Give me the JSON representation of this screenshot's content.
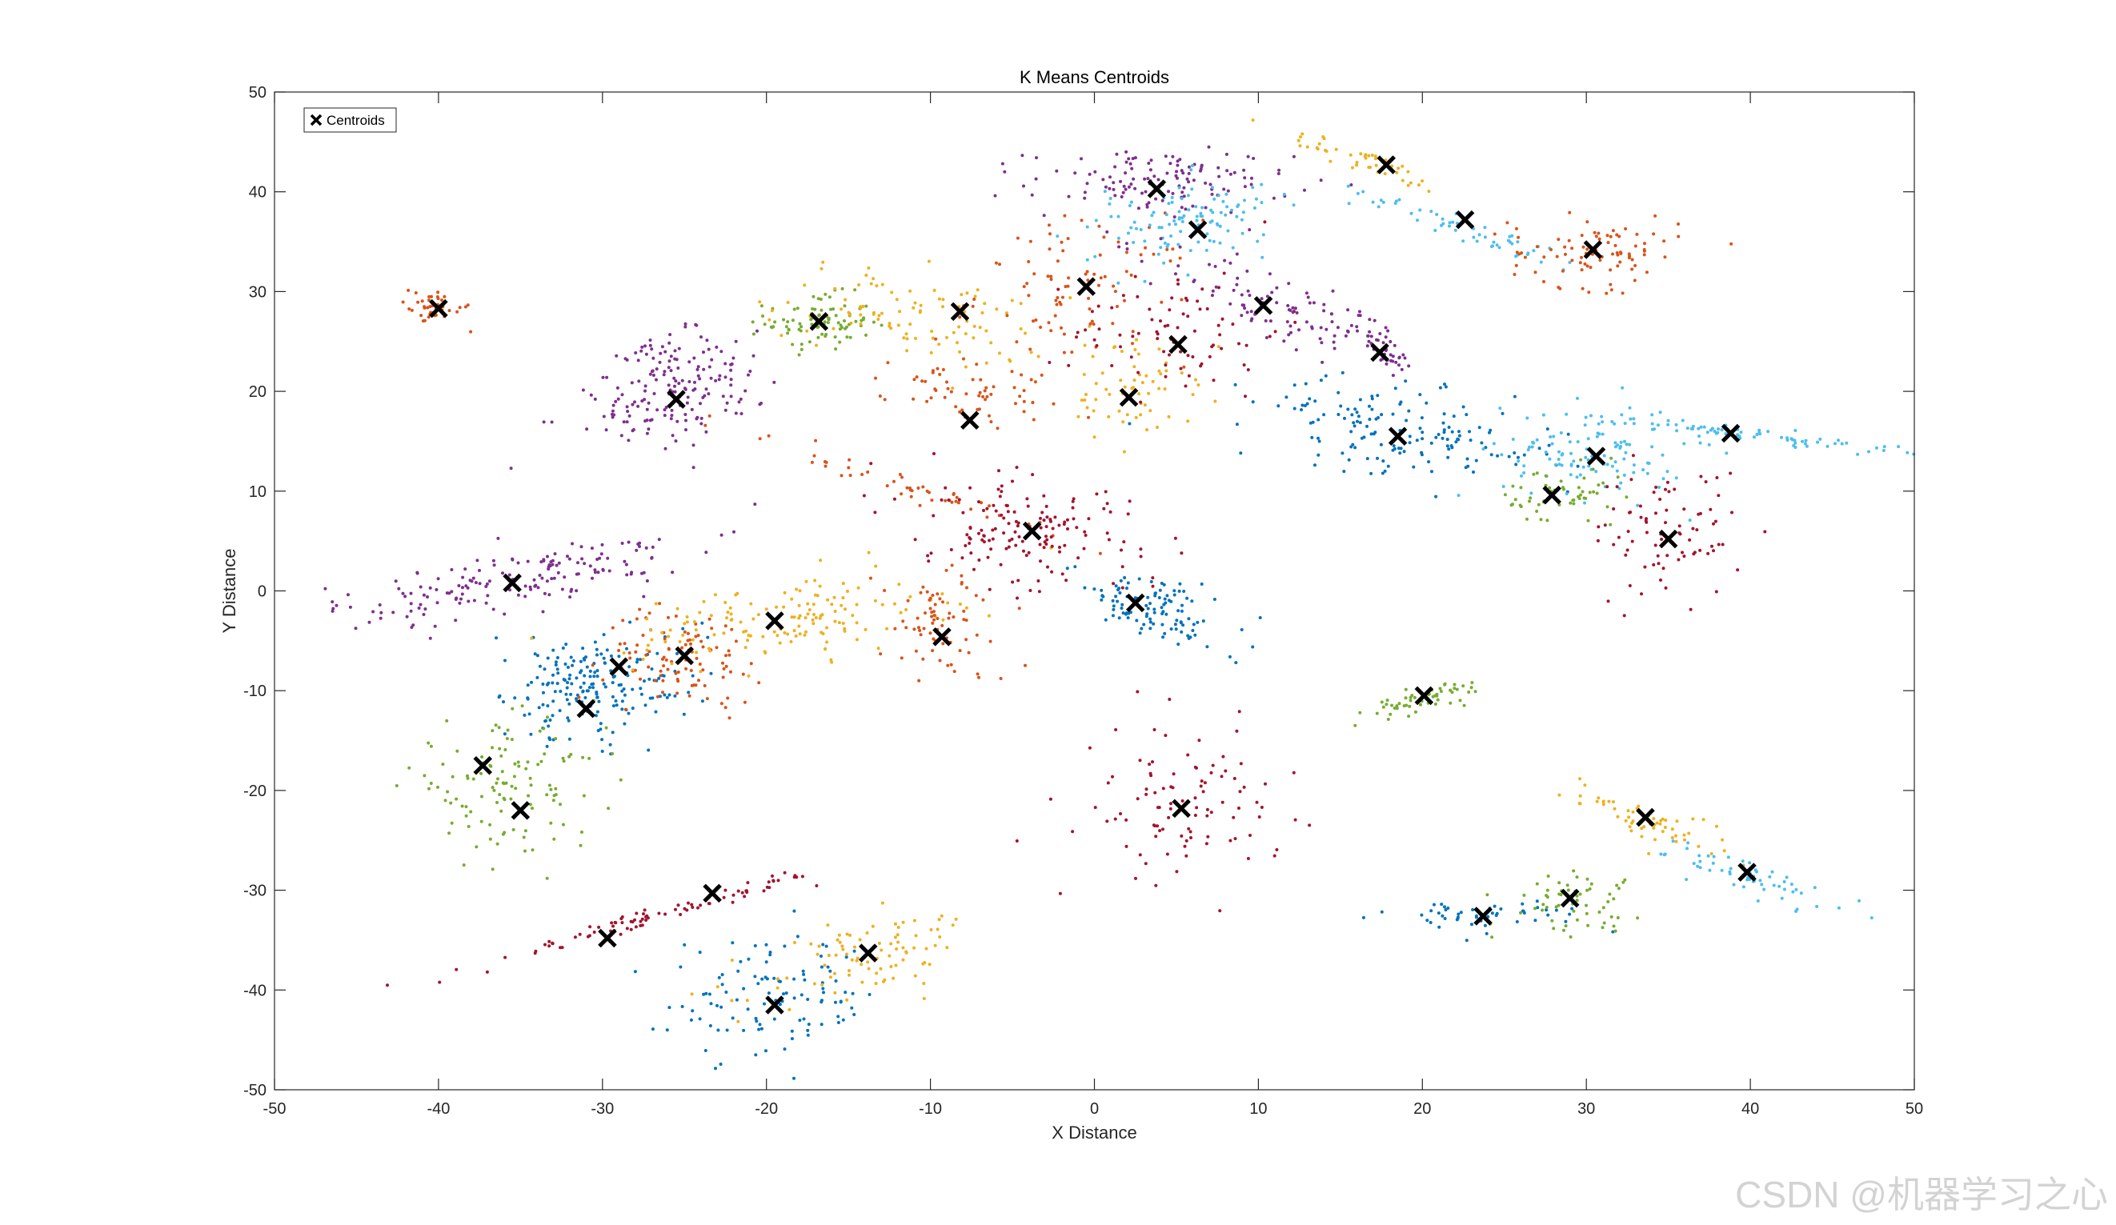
{
  "watermark": "CSDN @机器学习之心",
  "chart_data": {
    "type": "scatter",
    "title": "K Means Centroids",
    "xlabel": "X Distance",
    "ylabel": "Y Distance",
    "xlim": [
      -50,
      50
    ],
    "ylim": [
      -50,
      50
    ],
    "xticks": [
      -50,
      -40,
      -30,
      -20,
      -10,
      0,
      10,
      20,
      30,
      40,
      50
    ],
    "yticks": [
      -50,
      -40,
      -30,
      -20,
      -10,
      0,
      10,
      20,
      30,
      40,
      50
    ],
    "grid": false,
    "legend": {
      "position": "top-left",
      "entries": [
        "Centroids"
      ]
    },
    "colors": {
      "blue": "#0072BD",
      "orange": "#D95319",
      "yellow": "#EDB120",
      "purple": "#7E2F8E",
      "green": "#77AC30",
      "cyan": "#4DBEEE",
      "maroon": "#A2142F",
      "centroid": "#000000"
    },
    "centroids": [
      [
        -40,
        28.3
      ],
      [
        -35.5,
        0.8
      ],
      [
        -37.3,
        -17.5
      ],
      [
        -35,
        -22
      ],
      [
        -31,
        -11.8
      ],
      [
        -29,
        -7.6
      ],
      [
        -25.5,
        19.2
      ],
      [
        -25,
        -6.5
      ],
      [
        -23.3,
        -30.3
      ],
      [
        -29.7,
        -34.8
      ],
      [
        -19.5,
        -3
      ],
      [
        -19.5,
        -41.5
      ],
      [
        -16.8,
        27
      ],
      [
        -13.8,
        -36.3
      ],
      [
        -9.3,
        -4.6
      ],
      [
        -8.2,
        28
      ],
      [
        -7.6,
        17.1
      ],
      [
        -3.8,
        6
      ],
      [
        -0.5,
        30.5
      ],
      [
        2.5,
        -1.2
      ],
      [
        2.1,
        19.4
      ],
      [
        3.8,
        40.3
      ],
      [
        5.1,
        24.7
      ],
      [
        5.3,
        -21.8
      ],
      [
        6.3,
        36.2
      ],
      [
        10.3,
        28.6
      ],
      [
        17.4,
        23.9
      ],
      [
        17.8,
        42.7
      ],
      [
        18.5,
        15.5
      ],
      [
        20.1,
        -10.5
      ],
      [
        22.6,
        37.2
      ],
      [
        23.7,
        -32.6
      ],
      [
        27.9,
        9.6
      ],
      [
        29.0,
        -30.8
      ],
      [
        30.4,
        34.2
      ],
      [
        30.6,
        13.5
      ],
      [
        33.6,
        -22.7
      ],
      [
        35.0,
        5.2
      ],
      [
        38.8,
        15.8
      ],
      [
        39.8,
        -28.2
      ]
    ],
    "clusters": [
      {
        "color": "orange",
        "center": [
          -40.3,
          28.5
        ],
        "spread": [
          1.2,
          0.9
        ],
        "angle": -37,
        "n": 40
      },
      {
        "color": "purple",
        "center": [
          -25.5,
          20.5
        ],
        "spread": [
          3.2,
          2.8
        ],
        "angle": 45,
        "n": 180
      },
      {
        "color": "green",
        "center": [
          -16.8,
          26.9
        ],
        "spread": [
          1.6,
          1.4
        ],
        "angle": 0,
        "n": 90
      },
      {
        "color": "yellow",
        "center": [
          -11,
          27.5
        ],
        "spread": [
          4.5,
          2.2
        ],
        "angle": -15,
        "n": 100
      },
      {
        "color": "orange",
        "center": [
          -0.5,
          30
        ],
        "spread": [
          3.3,
          3.6
        ],
        "angle": 0,
        "n": 90
      },
      {
        "color": "orange",
        "center": [
          -7.6,
          20
        ],
        "spread": [
          1.4,
          2.8
        ],
        "angle": 70,
        "n": 60
      },
      {
        "color": "yellow",
        "center": [
          2.3,
          20.5
        ],
        "spread": [
          2.2,
          2.5
        ],
        "angle": 40,
        "n": 60
      },
      {
        "color": "purple",
        "center": [
          4,
          41
        ],
        "spread": [
          4.0,
          1.6
        ],
        "angle": 0,
        "n": 130
      },
      {
        "color": "cyan",
        "center": [
          5.5,
          37
        ],
        "spread": [
          3.0,
          2.0
        ],
        "angle": 25,
        "n": 110
      },
      {
        "color": "maroon",
        "center": [
          5.1,
          26
        ],
        "spread": [
          3.2,
          3.2
        ],
        "angle": 0,
        "n": 80
      },
      {
        "color": "purple",
        "center": [
          10.8,
          28.5
        ],
        "spread": [
          4.0,
          1.5
        ],
        "angle": -35,
        "n": 90
      },
      {
        "color": "purple",
        "center": [
          17.6,
          24.5
        ],
        "spread": [
          2.6,
          0.5
        ],
        "angle": -62,
        "n": 45
      },
      {
        "color": "yellow",
        "center": [
          16.5,
          43
        ],
        "spread": [
          3.0,
          0.5
        ],
        "angle": -32,
        "n": 45
      },
      {
        "color": "cyan",
        "center": [
          23.3,
          36
        ],
        "spread": [
          4.0,
          0.6
        ],
        "angle": -30,
        "n": 55
      },
      {
        "color": "orange",
        "center": [
          30.5,
          34
        ],
        "spread": [
          2.6,
          1.8
        ],
        "angle": 0,
        "n": 90
      },
      {
        "color": "blue",
        "center": [
          18.8,
          16
        ],
        "spread": [
          5.0,
          2.1
        ],
        "angle": -18,
        "n": 160
      },
      {
        "color": "cyan",
        "center": [
          30.5,
          14
        ],
        "spread": [
          2.8,
          2.4
        ],
        "angle": 0,
        "n": 110
      },
      {
        "color": "green",
        "center": [
          28.5,
          9.3
        ],
        "spread": [
          2.0,
          1.6
        ],
        "angle": 0,
        "n": 55
      },
      {
        "color": "maroon",
        "center": [
          35,
          6
        ],
        "spread": [
          2.3,
          3.2
        ],
        "angle": 0,
        "n": 80
      },
      {
        "color": "cyan",
        "center": [
          39.5,
          15.8
        ],
        "spread": [
          5.0,
          0.35
        ],
        "angle": -10,
        "n": 80
      },
      {
        "color": "purple",
        "center": [
          -35.5,
          1
        ],
        "spread": [
          5.5,
          1.5
        ],
        "angle": 18,
        "n": 170
      },
      {
        "color": "blue",
        "center": [
          -30.5,
          -9.5
        ],
        "spread": [
          3.0,
          2.5
        ],
        "angle": 25,
        "n": 200
      },
      {
        "color": "orange",
        "center": [
          -25,
          -6.5
        ],
        "spread": [
          2.4,
          2.4
        ],
        "angle": 0,
        "n": 100
      },
      {
        "color": "yellow",
        "center": [
          -19,
          -3
        ],
        "spread": [
          4.8,
          2.0
        ],
        "angle": 10,
        "n": 150
      },
      {
        "color": "orange",
        "center": [
          -9.3,
          -3.5
        ],
        "spread": [
          2.0,
          3.0
        ],
        "angle": 0,
        "n": 75
      },
      {
        "color": "orange",
        "center": [
          -11.5,
          10.5
        ],
        "spread": [
          4.5,
          0.5
        ],
        "angle": -30,
        "n": 50
      },
      {
        "color": "maroon",
        "center": [
          -4,
          6
        ],
        "spread": [
          4.2,
          2.6
        ],
        "angle": -25,
        "n": 150
      },
      {
        "color": "blue",
        "center": [
          3.5,
          -1.8
        ],
        "spread": [
          3.0,
          1.5
        ],
        "angle": -38,
        "n": 110
      },
      {
        "color": "green",
        "center": [
          -36,
          -19.5
        ],
        "spread": [
          3.0,
          3.0
        ],
        "angle": 0,
        "n": 120
      },
      {
        "color": "maroon",
        "center": [
          -26.5,
          -32.5
        ],
        "spread": [
          6.0,
          0.4
        ],
        "angle": 25,
        "n": 90
      },
      {
        "color": "blue",
        "center": [
          -19.5,
          -41
        ],
        "spread": [
          3.2,
          3.0
        ],
        "angle": 0,
        "n": 110
      },
      {
        "color": "yellow",
        "center": [
          -13.8,
          -36.5
        ],
        "spread": [
          3.8,
          1.6
        ],
        "angle": 30,
        "n": 90
      },
      {
        "color": "maroon",
        "center": [
          5.3,
          -21.5
        ],
        "spread": [
          3.0,
          3.8
        ],
        "angle": 0,
        "n": 100
      },
      {
        "color": "green",
        "center": [
          20.1,
          -10.8
        ],
        "spread": [
          1.8,
          0.5
        ],
        "angle": 28,
        "n": 55
      },
      {
        "color": "blue",
        "center": [
          23.8,
          -32.5
        ],
        "spread": [
          3.0,
          0.8
        ],
        "angle": 0,
        "n": 50
      },
      {
        "color": "green",
        "center": [
          29,
          -31
        ],
        "spread": [
          2.0,
          1.5
        ],
        "angle": 0,
        "n": 60
      },
      {
        "color": "yellow",
        "center": [
          33.5,
          -22.8
        ],
        "spread": [
          3.0,
          0.9
        ],
        "angle": -30,
        "n": 60
      },
      {
        "color": "cyan",
        "center": [
          40.5,
          -29
        ],
        "spread": [
          3.0,
          0.8
        ],
        "angle": -30,
        "n": 60
      }
    ]
  }
}
